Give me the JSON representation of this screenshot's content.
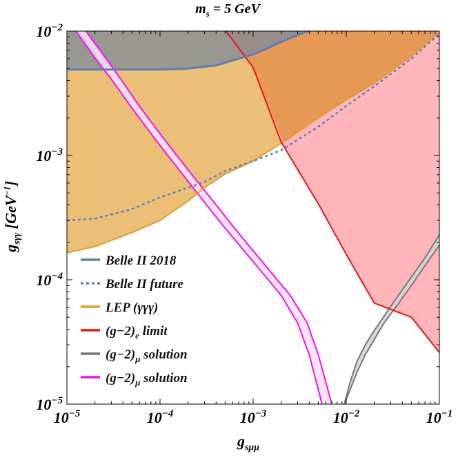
{
  "chart_data": {
    "type": "area",
    "title": "m_s = 5 GeV",
    "xlabel": "g_sμμ",
    "ylabel": "g_sγγ [GeV^-1]",
    "x_scale": "log",
    "y_scale": "log",
    "xlim": [
      1e-05,
      0.1
    ],
    "ylim": [
      1e-05,
      0.01
    ],
    "x_ticks": [
      "10^-5",
      "10^-4",
      "10^-3",
      "10^-2",
      "10^-1"
    ],
    "y_ticks": [
      "10^-5",
      "10^-4",
      "10^-3",
      "10^-2"
    ],
    "legend_position": "bottom-left",
    "colors": {
      "belle": "#5b7fbd",
      "lep_line": "#e39b25",
      "lep_fill": "#e9b45f",
      "overlap_fill": "#e3964b",
      "g2e_line": "#ee1111",
      "g2e_fill": "#ffaeb3",
      "g2mu_gray": "#777777",
      "g2mu_magenta": "#ee11ee"
    },
    "series": [
      {
        "name": "Belle II 2018",
        "kind": "exclusion-boundary",
        "style": "solid",
        "x": [
          1e-05,
          2e-05,
          5e-05,
          0.0001,
          0.0002,
          0.0004,
          0.0006,
          0.001,
          0.0015,
          0.002,
          0.003,
          0.004
        ],
        "y": [
          0.0049,
          0.0049,
          0.0049,
          0.0049,
          0.005,
          0.0053,
          0.0058,
          0.0065,
          0.0074,
          0.0082,
          0.0093,
          0.0101
        ]
      },
      {
        "name": "Belle II  future",
        "kind": "projection",
        "style": "dashed",
        "x": [
          1e-05,
          2e-05,
          5e-05,
          0.0001,
          0.0002,
          0.0003,
          0.0005,
          0.001,
          0.002,
          0.005,
          0.01,
          0.02,
          0.05,
          0.1
        ],
        "y": [
          0.0003,
          0.00031,
          0.00037,
          0.00046,
          0.00055,
          0.00061,
          0.00075,
          0.0009,
          0.0011,
          0.0017,
          0.0025,
          0.0036,
          0.006,
          0.0095
        ]
      },
      {
        "name": "LEP (γγγ)",
        "kind": "exclusion-boundary",
        "style": "solid",
        "x": [
          1e-05,
          2e-05,
          5e-05,
          0.0001,
          0.0002,
          0.0003,
          0.0005,
          0.001,
          0.002,
          0.005,
          0.01,
          0.02,
          0.05,
          0.1
        ],
        "y": [
          0.000165,
          0.000185,
          0.00024,
          0.0003,
          0.00043,
          0.00055,
          0.00071,
          0.0009,
          0.00125,
          0.002,
          0.0028,
          0.0038,
          0.0063,
          0.0098
        ]
      },
      {
        "name": "(g−2)_e limit",
        "kind": "exclusion-boundary",
        "style": "solid",
        "x": [
          0.0005,
          0.001,
          0.002,
          0.005,
          0.01,
          0.02,
          0.05,
          0.1
        ],
        "y": [
          0.0102,
          0.0051,
          0.00128,
          0.00041,
          0.00016,
          6.5e-05,
          5e-05,
          2.6e-05
        ]
      },
      {
        "name": "(g−2)_μ solution",
        "kind": "band",
        "style": "solid",
        "x": [
          0.0095,
          0.011,
          0.013,
          0.016,
          0.02,
          0.025,
          0.035,
          0.05,
          0.07,
          0.1
        ],
        "y_low": [
          1e-05,
          1.3e-05,
          1.8e-05,
          2.5e-05,
          3.3e-05,
          4.4e-05,
          6.2e-05,
          9e-05,
          0.00013,
          0.00019
        ],
        "y_high": [
          1e-05,
          1.5e-05,
          2.2e-05,
          3e-05,
          3.9e-05,
          5e-05,
          7.2e-05,
          0.000105,
          0.00015,
          0.00023
        ]
      },
      {
        "name": "(g−2)_μ solution",
        "kind": "band",
        "style": "solid",
        "x_low": [
          1.25e-05,
          2e-05,
          3e-05,
          5e-05,
          0.0001,
          0.0002,
          0.0003,
          0.0005,
          0.001,
          0.002,
          0.003,
          0.004,
          0.0055
        ],
        "x_high": [
          1.6e-05,
          2.6e-05,
          3.8e-05,
          6.2e-05,
          0.000125,
          0.00025,
          0.00038,
          0.00063,
          0.00125,
          0.0025,
          0.0038,
          0.005,
          0.007
        ],
        "y": [
          0.01,
          0.0061,
          0.0041,
          0.0024,
          0.0012,
          0.00062,
          0.00042,
          0.00026,
          0.00014,
          7.5e-05,
          4.5e-05,
          2.5e-05,
          1e-05
        ]
      }
    ],
    "legend": [
      "Belle II 2018",
      "Belle II  future",
      "LEP (γγγ)",
      "(g−2)_e limit",
      "(g−2)_μ solution",
      "(g−2)_μ solution"
    ]
  }
}
